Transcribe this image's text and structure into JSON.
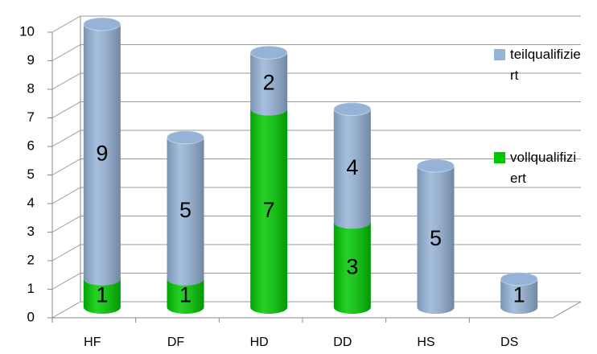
{
  "chart_data": {
    "type": "bar",
    "stacked": true,
    "categories": [
      "HF",
      "DF",
      "HD",
      "DD",
      "HS",
      "DS"
    ],
    "series": [
      {
        "name": "vollqualifiziert",
        "color": "#00c800",
        "values": [
          1,
          1,
          7,
          3,
          0,
          0
        ]
      },
      {
        "name": "teilqualifiziert",
        "color": "#95b3d7",
        "values": [
          9,
          5,
          2,
          4,
          5,
          1
        ]
      }
    ],
    "ylim": [
      0,
      10
    ],
    "yticks": [
      0,
      1,
      2,
      3,
      4,
      5,
      6,
      7,
      8,
      9,
      10
    ],
    "grid": true
  }
}
